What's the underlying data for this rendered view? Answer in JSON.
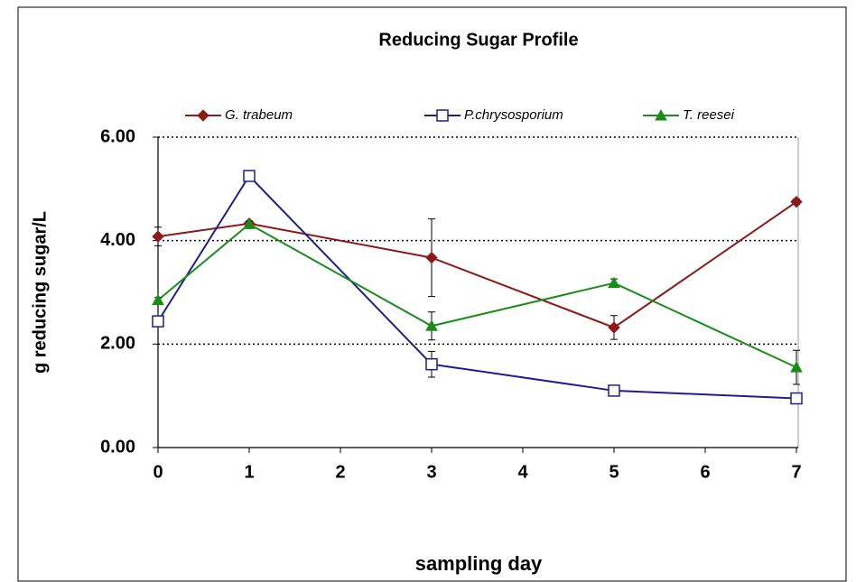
{
  "chart_data": {
    "type": "line",
    "title": "Reducing Sugar Profile",
    "x_label": "sampling day",
    "y_label": "g reducing sugar/L",
    "x": [
      0,
      1,
      3,
      5,
      7
    ],
    "series": [
      {
        "name": "G. trabeum",
        "color": "#8b1a1a",
        "marker": "diamond",
        "values": [
          4.08,
          4.33,
          3.67,
          2.32,
          4.75
        ],
        "errors": [
          0.18,
          0.05,
          0.75,
          0.23,
          0.05
        ]
      },
      {
        "name": "P.chrysosporium",
        "color": "#1f1f8c",
        "marker": "square-open",
        "values": [
          2.44,
          5.25,
          1.61,
          1.1,
          0.95
        ],
        "errors": [
          0.05,
          0.05,
          0.25,
          0.1,
          0.1
        ]
      },
      {
        "name": "T. reesei",
        "color": "#1a8c1a",
        "marker": "triangle",
        "values": [
          2.85,
          4.32,
          2.35,
          3.18,
          1.55
        ],
        "errors": [
          0.05,
          0.05,
          0.27,
          0.08,
          0.33
        ]
      }
    ],
    "xlim": [
      0,
      7
    ],
    "xticks": [
      0,
      1,
      2,
      3,
      4,
      5,
      6,
      7
    ],
    "ylim": [
      0,
      6
    ],
    "yticks": [
      {
        "value": 0,
        "label": "0.00"
      },
      {
        "value": 2,
        "label": "2.00"
      },
      {
        "value": 4,
        "label": "4.00"
      },
      {
        "value": 6,
        "label": "6.00"
      }
    ],
    "grid": true
  }
}
